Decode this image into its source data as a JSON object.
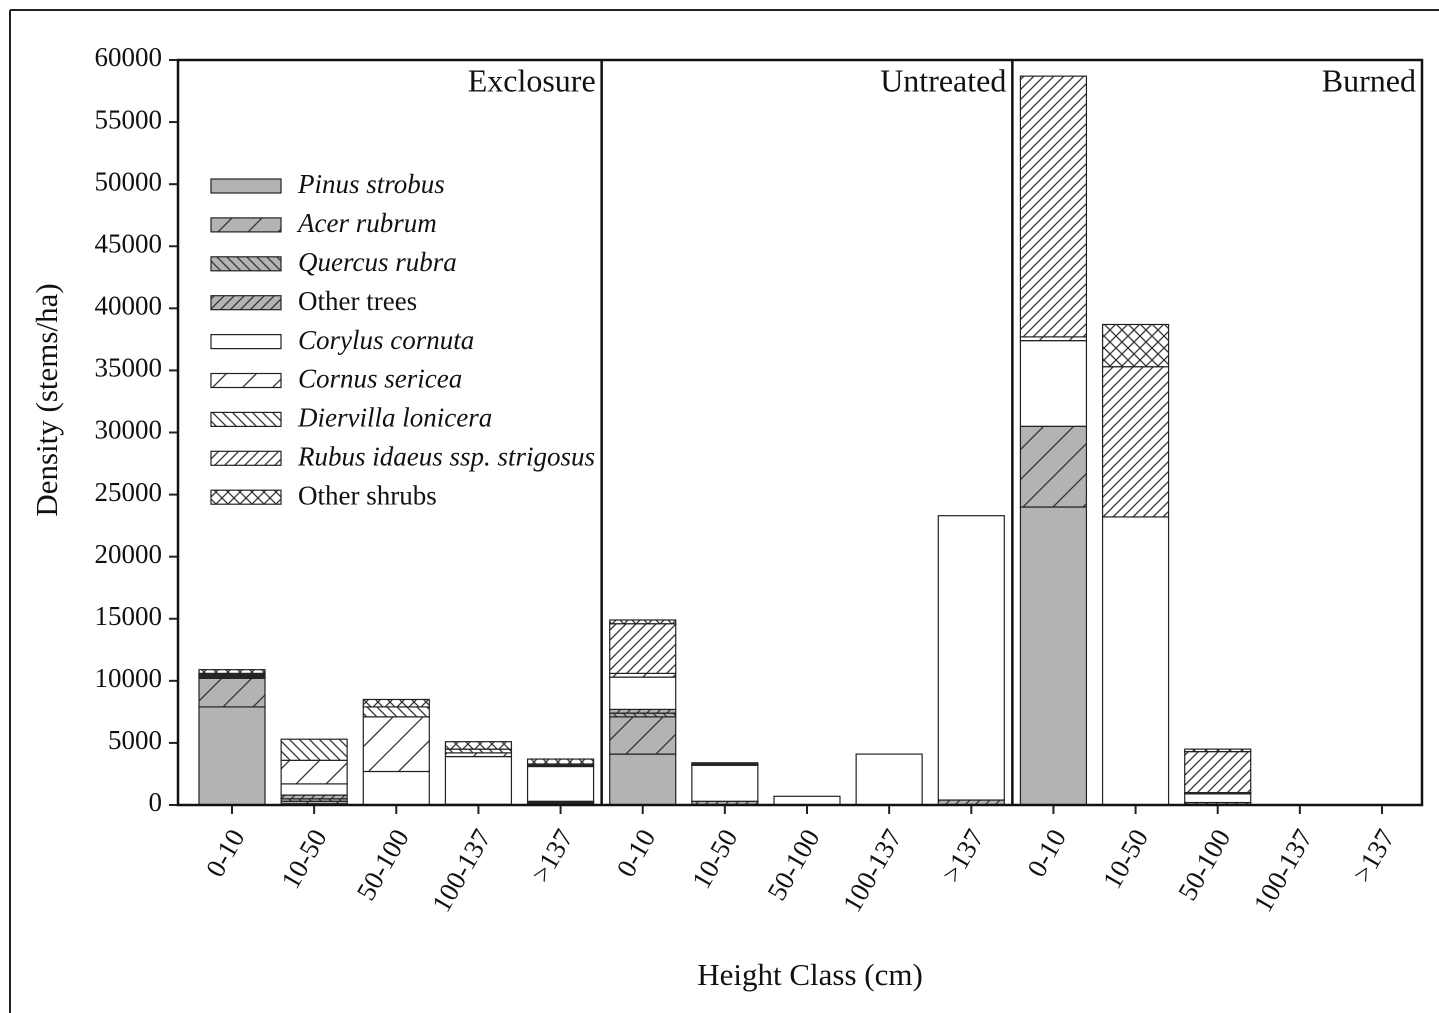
{
  "chart_data": {
    "type": "stacked-bar",
    "xlabel": "Height Class (cm)",
    "ylabel": "Density (stems/ha)",
    "panels": [
      "Exclosure",
      "Untreated",
      "Burned"
    ],
    "categories": [
      "0-10",
      "10-50",
      "50-100",
      "100-137",
      ">137",
      "0-10",
      "10-50",
      "50-100",
      "100-137",
      ">137",
      "0-10",
      "10-50",
      "50-100",
      "100-137",
      ">137"
    ],
    "ylim": [
      0,
      60000
    ],
    "yticks": [
      0,
      5000,
      10000,
      15000,
      20000,
      25000,
      30000,
      35000,
      40000,
      45000,
      50000,
      55000,
      60000
    ],
    "legend": "upper left",
    "series": [
      {
        "name": "Pinus strobus",
        "color": "#b3b3b3",
        "hatch": "none",
        "italic": true,
        "values": [
          7900,
          100,
          0,
          50,
          100,
          4100,
          0,
          0,
          0,
          0,
          24000,
          0,
          0,
          0,
          0
        ]
      },
      {
        "name": "Acer rubrum",
        "color": "#b3b3b3",
        "hatch": "wide-forward",
        "italic": true,
        "values": [
          2300,
          200,
          0,
          0,
          100,
          3000,
          0,
          0,
          0,
          0,
          6500,
          0,
          0,
          0,
          0
        ]
      },
      {
        "name": "Quercus rubra",
        "color": "#b3b3b3",
        "hatch": "dense-backward",
        "italic": true,
        "values": [
          100,
          200,
          0,
          0,
          100,
          300,
          0,
          0,
          0,
          0,
          0,
          0,
          0,
          0,
          0
        ]
      },
      {
        "name": "Other trees",
        "color": "#b3b3b3",
        "hatch": "dense-forward",
        "italic": false,
        "values": [
          100,
          300,
          0,
          0,
          0,
          300,
          300,
          0,
          0,
          400,
          0,
          0,
          200,
          0,
          0
        ]
      },
      {
        "name": "Corylus cornuta",
        "color": "#ffffff",
        "hatch": "none",
        "italic": true,
        "values": [
          100,
          900,
          2700,
          3850,
          2800,
          2600,
          2900,
          700,
          4100,
          22900,
          6900,
          23200,
          700,
          0,
          0
        ]
      },
      {
        "name": "Cornus sericea",
        "color": "#ffffff",
        "hatch": "wide-forward",
        "italic": true,
        "values": [
          0,
          1900,
          4400,
          300,
          100,
          300,
          100,
          0,
          0,
          0,
          300,
          0,
          0,
          0,
          0
        ]
      },
      {
        "name": "Diervilla lonicera",
        "color": "#ffffff",
        "hatch": "dense-backward",
        "italic": true,
        "values": [
          100,
          1700,
          800,
          300,
          100,
          0,
          100,
          0,
          0,
          0,
          0,
          0,
          100,
          0,
          0
        ]
      },
      {
        "name": "Rubus idaeus ssp. strigosus",
        "color": "#ffffff",
        "hatch": "dense-forward",
        "italic": true,
        "values": [
          0,
          0,
          0,
          0,
          0,
          4000,
          0,
          0,
          0,
          0,
          21000,
          12100,
          3300,
          0,
          0
        ]
      },
      {
        "name": "Other shrubs",
        "color": "#ffffff",
        "hatch": "dense-cross",
        "italic": false,
        "values": [
          300,
          0,
          600,
          600,
          400,
          300,
          0,
          0,
          0,
          0,
          0,
          3400,
          200,
          0,
          0
        ]
      }
    ]
  }
}
